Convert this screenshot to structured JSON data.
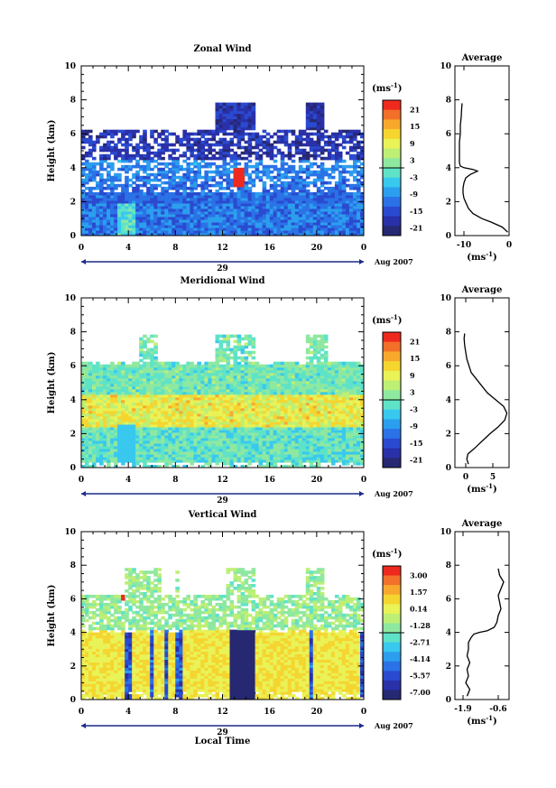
{
  "chart_data": [
    {
      "type": "heatmap",
      "title": "Zonal Wind",
      "ylabel": "Height (km)",
      "ylim": [
        0,
        10
      ],
      "x_ticks": [
        "0",
        "4",
        "8",
        "12",
        "16",
        "20",
        "0"
      ],
      "y_ticks": [
        "0",
        "2",
        "4",
        "6",
        "8",
        "10"
      ],
      "date_day": "29",
      "date_label": "Aug 2007",
      "colorbar": {
        "unit_base": "(ms",
        "unit_exp": "-1",
        "unit_end": ")",
        "labels": [
          "21",
          "15",
          "9",
          "3",
          "-3",
          "-9",
          "-15",
          "-21"
        ],
        "colors": [
          "#ee2a1e",
          "#f2702a",
          "#f8a82c",
          "#f5d530",
          "#e9f256",
          "#bdef75",
          "#8fe8a0",
          "#5fe3c8",
          "#39c8ee",
          "#2c9eee",
          "#2a72e6",
          "#2a4ad0",
          "#2a30a8",
          "#262872"
        ]
      },
      "profile": {
        "title": "Average",
        "xlim": [
          -12,
          0
        ],
        "x_ticks": [
          "-10",
          "0"
        ],
        "xlabel": "(ms",
        "xlabel_exp": "-1",
        "xlabel_end": ")",
        "heights": [
          0.2,
          0.5,
          0.8,
          1.0,
          1.3,
          1.6,
          1.9,
          2.2,
          2.5,
          2.8,
          3.1,
          3.4,
          3.6,
          3.8,
          3.9,
          4.0,
          4.1,
          4.3,
          4.6,
          5.0,
          5.5,
          6.0,
          6.5,
          7.0,
          7.5,
          7.8
        ],
        "values": [
          -0.3,
          -1.5,
          -4.0,
          -6.0,
          -8.0,
          -9.0,
          -9.5,
          -10.0,
          -10.2,
          -10.2,
          -10.0,
          -9.6,
          -8.6,
          -7.0,
          -8.0,
          -10.0,
          -10.8,
          -11.0,
          -11.0,
          -11.0,
          -11.0,
          -10.8,
          -10.8,
          -10.6,
          -10.5,
          -10.4
        ]
      }
    },
    {
      "type": "heatmap",
      "title": "Meridional Wind",
      "ylabel": "Height (km)",
      "ylim": [
        0,
        10
      ],
      "x_ticks": [
        "0",
        "4",
        "8",
        "12",
        "16",
        "20",
        "0"
      ],
      "y_ticks": [
        "0",
        "2",
        "4",
        "6",
        "8",
        "10"
      ],
      "date_day": "29",
      "date_label": "Aug 2007",
      "colorbar": {
        "unit_base": "(ms",
        "unit_exp": "-1",
        "unit_end": ")",
        "labels": [
          "21",
          "15",
          "9",
          "3",
          "-3",
          "-9",
          "-15",
          "-21"
        ],
        "colors": [
          "#ee2a1e",
          "#f2702a",
          "#f8a82c",
          "#f5d530",
          "#e9f256",
          "#bdef75",
          "#8fe8a0",
          "#5fe3c8",
          "#39c8ee",
          "#2c9eee",
          "#2a72e6",
          "#2a4ad0",
          "#2a30a8",
          "#262872"
        ]
      },
      "profile": {
        "title": "Average",
        "xlim": [
          -2,
          8
        ],
        "x_ticks": [
          "0",
          "5"
        ],
        "xlabel": "(ms",
        "xlabel_exp": "-1",
        "xlabel_end": ")",
        "heights": [
          0.2,
          0.5,
          0.8,
          1.1,
          1.4,
          1.7,
          2.0,
          2.4,
          2.8,
          3.2,
          3.6,
          4.0,
          4.4,
          4.8,
          5.2,
          5.6,
          6.0,
          6.4,
          6.8,
          7.2,
          7.6,
          7.9
        ],
        "values": [
          0.5,
          0.2,
          0.4,
          1.5,
          2.5,
          3.5,
          4.5,
          6.0,
          7.2,
          7.6,
          7.0,
          5.5,
          4.0,
          3.0,
          2.0,
          1.0,
          0.6,
          0.2,
          0.0,
          -0.2,
          -0.3,
          -0.2
        ]
      }
    },
    {
      "type": "heatmap",
      "title": "Vertical Wind",
      "ylabel": "Height (km)",
      "xlabel": "Local Time",
      "ylim": [
        0,
        10
      ],
      "x_ticks": [
        "0",
        "4",
        "8",
        "12",
        "16",
        "20",
        "0"
      ],
      "y_ticks": [
        "0",
        "2",
        "4",
        "6",
        "8",
        "10"
      ],
      "date_day": "29",
      "date_label": "Aug 2007",
      "colorbar": {
        "unit_base": "(ms",
        "unit_exp": "-1",
        "unit_end": ")",
        "labels": [
          "3.00",
          "1.57",
          "0.14",
          "-1.28",
          "-2.71",
          "-4.14",
          "-5.57",
          "-7.00"
        ],
        "colors": [
          "#ee2a1e",
          "#f2702a",
          "#f8a82c",
          "#f5d530",
          "#e9f256",
          "#bdef75",
          "#8fe8a0",
          "#5fe3c8",
          "#39c8ee",
          "#2c9eee",
          "#2a72e6",
          "#2a4ad0",
          "#2a30a8",
          "#262872"
        ]
      },
      "profile": {
        "title": "Average",
        "xlim": [
          -2.2,
          -0.2
        ],
        "x_ticks": [
          "-1.9",
          "-0.6"
        ],
        "xlabel": "(ms",
        "xlabel_exp": "-1",
        "xlabel_end": ")",
        "heights": [
          0.2,
          0.6,
          1.0,
          1.4,
          1.8,
          2.2,
          2.6,
          3.0,
          3.4,
          3.7,
          3.9,
          4.0,
          4.1,
          4.3,
          4.6,
          5.0,
          5.4,
          5.8,
          6.2,
          6.6,
          7.0,
          7.4,
          7.8
        ],
        "values": [
          -1.75,
          -1.65,
          -1.8,
          -1.7,
          -1.75,
          -1.65,
          -1.75,
          -1.7,
          -1.7,
          -1.6,
          -1.5,
          -1.3,
          -1.0,
          -0.75,
          -0.65,
          -0.6,
          -0.5,
          -0.55,
          -0.6,
          -0.5,
          -0.4,
          -0.55,
          -0.6
        ]
      }
    }
  ]
}
